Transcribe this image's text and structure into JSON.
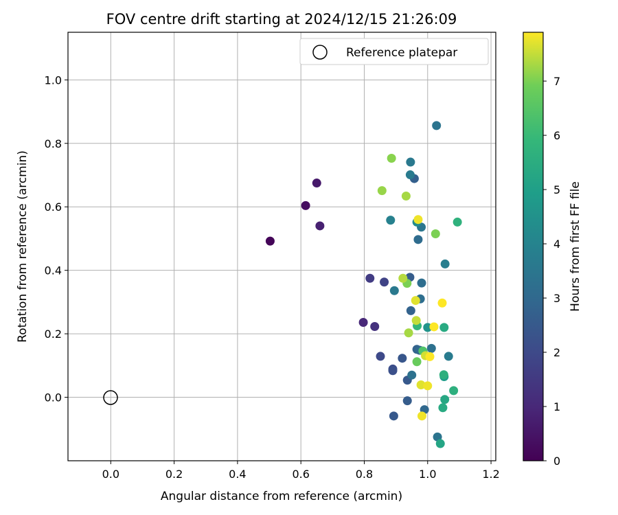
{
  "chart_data": {
    "type": "scatter",
    "title": "FOV centre drift starting at 2024/12/15 21:26:09",
    "xlabel": "Angular distance from reference (arcmin)",
    "ylabel": "Rotation from reference (arcmin)",
    "xlim": [
      -0.135,
      1.215
    ],
    "ylim": [
      -0.2,
      1.15
    ],
    "xticks": [
      0.0,
      0.2,
      0.4,
      0.6,
      0.8,
      1.0,
      1.2
    ],
    "xtick_labels": [
      "0.0",
      "0.2",
      "0.4",
      "0.6",
      "0.8",
      "1.0",
      "1.2"
    ],
    "yticks": [
      0.0,
      0.2,
      0.4,
      0.6,
      0.8,
      1.0
    ],
    "ytick_labels": [
      "0.0",
      "0.2",
      "0.4",
      "0.6",
      "0.8",
      "1.0"
    ],
    "grid": true,
    "legend": {
      "position": "upper right",
      "entries": [
        "Reference platepar"
      ]
    },
    "reference_point": {
      "x": 0.0,
      "y": 0.0,
      "marker": "open-circle"
    },
    "colorbar": {
      "label": "Hours from first FF file",
      "range": [
        0,
        7.9
      ],
      "ticks": [
        0,
        1,
        2,
        3,
        4,
        5,
        6,
        7
      ],
      "tick_labels": [
        "0",
        "1",
        "2",
        "3",
        "4",
        "5",
        "6",
        "7"
      ],
      "colormap": "viridis"
    },
    "points": [
      {
        "x": 0.503,
        "y": 0.492,
        "c": 0.1
      },
      {
        "x": 0.615,
        "y": 0.604,
        "c": 0.3
      },
      {
        "x": 0.65,
        "y": 0.675,
        "c": 0.6
      },
      {
        "x": 0.66,
        "y": 0.54,
        "c": 0.8
      },
      {
        "x": 0.797,
        "y": 0.236,
        "c": 1.0
      },
      {
        "x": 0.833,
        "y": 0.223,
        "c": 1.3
      },
      {
        "x": 0.818,
        "y": 0.375,
        "c": 1.6
      },
      {
        "x": 0.863,
        "y": 0.363,
        "c": 1.8
      },
      {
        "x": 0.851,
        "y": 0.129,
        "c": 2.0
      },
      {
        "x": 0.89,
        "y": 0.089,
        "c": 2.1
      },
      {
        "x": 0.89,
        "y": 0.084,
        "c": 2.2
      },
      {
        "x": 0.92,
        "y": 0.123,
        "c": 2.4
      },
      {
        "x": 0.936,
        "y": 0.054,
        "c": 2.5
      },
      {
        "x": 0.893,
        "y": -0.059,
        "c": 2.5
      },
      {
        "x": 0.936,
        "y": -0.011,
        "c": 2.6
      },
      {
        "x": 0.944,
        "y": 0.378,
        "c": 2.6
      },
      {
        "x": 0.958,
        "y": 0.689,
        "c": 2.7
      },
      {
        "x": 0.947,
        "y": 0.273,
        "c": 2.8
      },
      {
        "x": 0.966,
        "y": 0.151,
        "c": 2.8
      },
      {
        "x": 0.975,
        "y": 0.148,
        "c": 3.0
      },
      {
        "x": 0.99,
        "y": -0.039,
        "c": 3.0
      },
      {
        "x": 0.97,
        "y": 0.497,
        "c": 3.1
      },
      {
        "x": 0.977,
        "y": 0.31,
        "c": 3.2
      },
      {
        "x": 0.981,
        "y": 0.36,
        "c": 3.2
      },
      {
        "x": 0.95,
        "y": 0.07,
        "c": 3.3
      },
      {
        "x": 1.012,
        "y": 0.154,
        "c": 3.3
      },
      {
        "x": 1.028,
        "y": 0.856,
        "c": 3.4
      },
      {
        "x": 1.031,
        "y": -0.125,
        "c": 3.4
      },
      {
        "x": 0.98,
        "y": 0.536,
        "c": 3.5
      },
      {
        "x": 0.946,
        "y": 0.741,
        "c": 3.6
      },
      {
        "x": 0.895,
        "y": 0.336,
        "c": 3.6
      },
      {
        "x": 0.945,
        "y": 0.701,
        "c": 3.7
      },
      {
        "x": 1.066,
        "y": 0.129,
        "c": 3.7
      },
      {
        "x": 1.055,
        "y": 0.42,
        "c": 3.8
      },
      {
        "x": 0.883,
        "y": 0.558,
        "c": 3.9
      },
      {
        "x": 0.966,
        "y": 0.552,
        "c": 4.3
      },
      {
        "x": 1.0,
        "y": 0.22,
        "c": 4.6
      },
      {
        "x": 1.052,
        "y": 0.065,
        "c": 4.9
      },
      {
        "x": 1.04,
        "y": -0.146,
        "c": 5.2
      },
      {
        "x": 1.054,
        "y": -0.007,
        "c": 5.3
      },
      {
        "x": 1.048,
        "y": -0.033,
        "c": 5.4
      },
      {
        "x": 1.052,
        "y": 0.22,
        "c": 5.4
      },
      {
        "x": 1.051,
        "y": 0.071,
        "c": 5.6
      },
      {
        "x": 1.082,
        "y": 0.021,
        "c": 5.6
      },
      {
        "x": 1.094,
        "y": 0.552,
        "c": 5.7
      },
      {
        "x": 0.967,
        "y": 0.225,
        "c": 5.9
      },
      {
        "x": 0.985,
        "y": 0.146,
        "c": 6.4
      },
      {
        "x": 0.966,
        "y": 0.112,
        "c": 6.8
      },
      {
        "x": 0.935,
        "y": 0.359,
        "c": 7.0
      },
      {
        "x": 1.025,
        "y": 0.515,
        "c": 7.0
      },
      {
        "x": 0.886,
        "y": 0.753,
        "c": 7.1
      },
      {
        "x": 0.856,
        "y": 0.651,
        "c": 7.2
      },
      {
        "x": 0.932,
        "y": 0.634,
        "c": 7.3
      },
      {
        "x": 0.94,
        "y": 0.203,
        "c": 7.3
      },
      {
        "x": 0.922,
        "y": 0.375,
        "c": 7.4
      },
      {
        "x": 0.964,
        "y": 0.242,
        "c": 7.5
      },
      {
        "x": 0.993,
        "y": 0.131,
        "c": 7.6
      },
      {
        "x": 0.962,
        "y": 0.305,
        "c": 7.7
      },
      {
        "x": 0.979,
        "y": 0.039,
        "c": 7.7
      },
      {
        "x": 0.97,
        "y": 0.56,
        "c": 7.8
      },
      {
        "x": 0.982,
        "y": -0.059,
        "c": 7.8
      },
      {
        "x": 1.0,
        "y": 0.036,
        "c": 7.8
      },
      {
        "x": 1.007,
        "y": 0.128,
        "c": 7.9
      },
      {
        "x": 1.02,
        "y": 0.222,
        "c": 7.9
      },
      {
        "x": 1.046,
        "y": 0.297,
        "c": 7.9
      }
    ]
  }
}
